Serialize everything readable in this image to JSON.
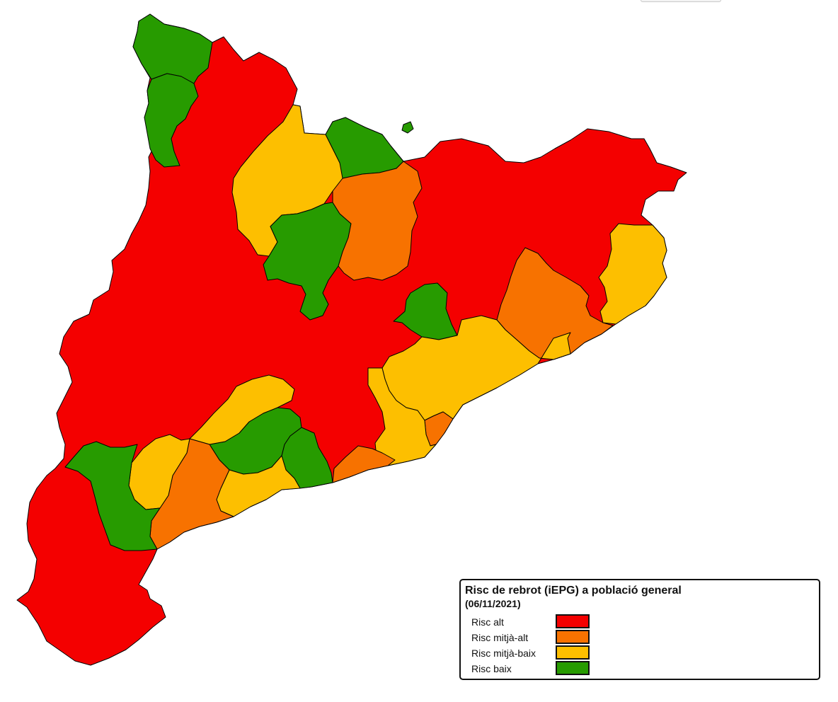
{
  "legend": {
    "title": "Risc de rebrot (iEPG) a població general",
    "date": "(06/11/2021)",
    "items": [
      {
        "key": "alt",
        "label": "Risc alt",
        "color": "#f40000"
      },
      {
        "key": "mitja_alt",
        "label": "Risc mitjà-alt",
        "color": "#f77200"
      },
      {
        "key": "mitja_baix",
        "label": "Risc mitjà-baix",
        "color": "#fdbf00"
      },
      {
        "key": "baix",
        "label": "Risc baix",
        "color": "#279b00"
      }
    ]
  },
  "map": {
    "region": "Catalunya",
    "boundary_color": "#000000",
    "background": "#ffffff"
  }
}
